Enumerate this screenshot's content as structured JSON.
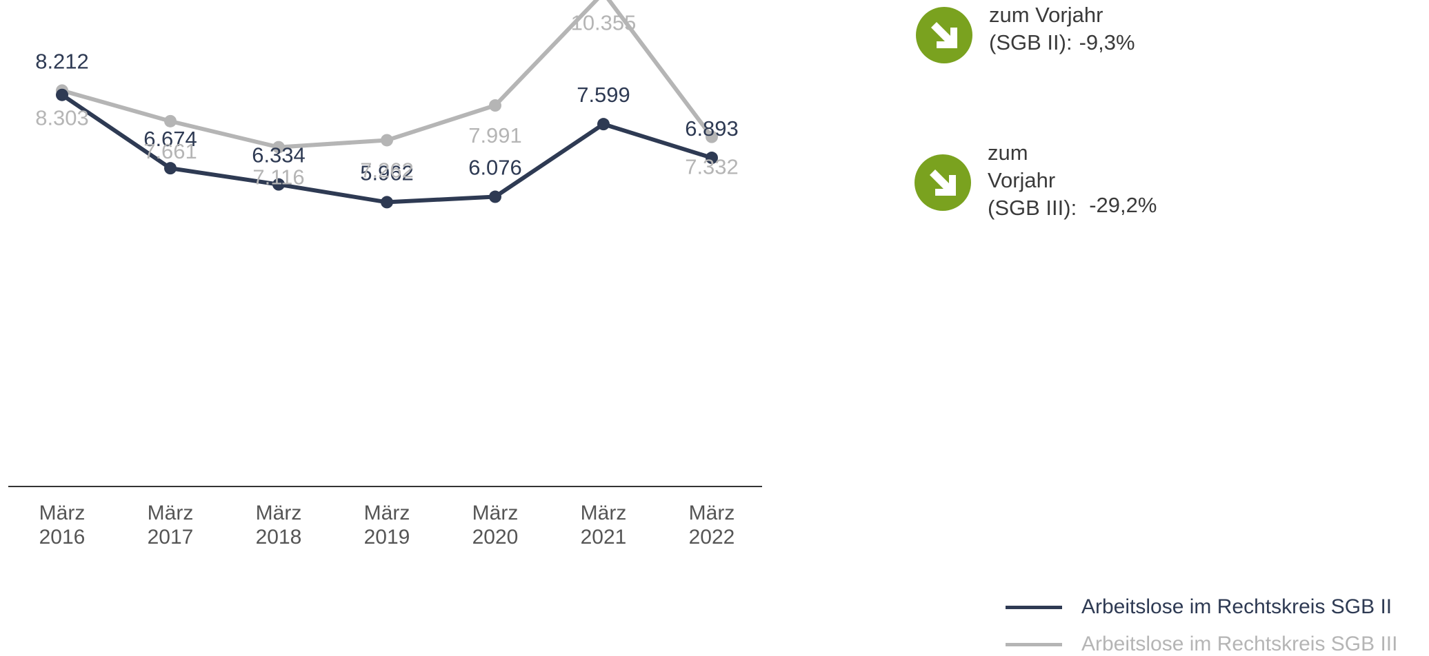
{
  "chart_data": {
    "type": "line",
    "categories": [
      [
        "März",
        "2016"
      ],
      [
        "März",
        "2017"
      ],
      [
        "März",
        "2018"
      ],
      [
        "März",
        "2019"
      ],
      [
        "März",
        "2020"
      ],
      [
        "März",
        "2021"
      ],
      [
        "März",
        "2022"
      ]
    ],
    "series": [
      {
        "name": "Arbeitslose im Rechtskreis SGB II",
        "color": "#2e3a53",
        "values": [
          8212,
          6674,
          6334,
          5962,
          6076,
          7599,
          6893
        ],
        "labels": [
          "8.212",
          "6.674",
          "6.334",
          "5.962",
          "6.076",
          "7.599",
          "6.893"
        ]
      },
      {
        "name": "Arbeitslose im Rechtskreis SGB III",
        "color": "#b5b5b5",
        "values": [
          8303,
          7661,
          7116,
          7262,
          7991,
          10355,
          7332
        ],
        "labels": [
          "8.303",
          "7.661",
          "7.116",
          "7.262",
          "7.991",
          "10.355",
          "7.332"
        ]
      }
    ],
    "ylim": [
      0,
      11000
    ],
    "grid": false,
    "legend_position": "bottom-right"
  },
  "badges": [
    {
      "icon": "arrow-down-right-icon",
      "lines": [
        "zum Vorjahr"
      ],
      "last": "(SGB II):",
      "pct": "-9,3%"
    },
    {
      "icon": "arrow-down-right-icon",
      "lines": [
        "zum",
        "Vorjahr"
      ],
      "last": "(SGB III):",
      "pct": "-29,2%"
    }
  ],
  "legend": [
    {
      "label": "Arbeitslose im Rechtskreis SGB II",
      "color": "#2e3a53"
    },
    {
      "label": "Arbeitslose im Rechtskreis SGB III",
      "color": "#b5b5b5"
    }
  ],
  "colors": {
    "badge_green": "#7aa21f",
    "axis": "#333333"
  }
}
